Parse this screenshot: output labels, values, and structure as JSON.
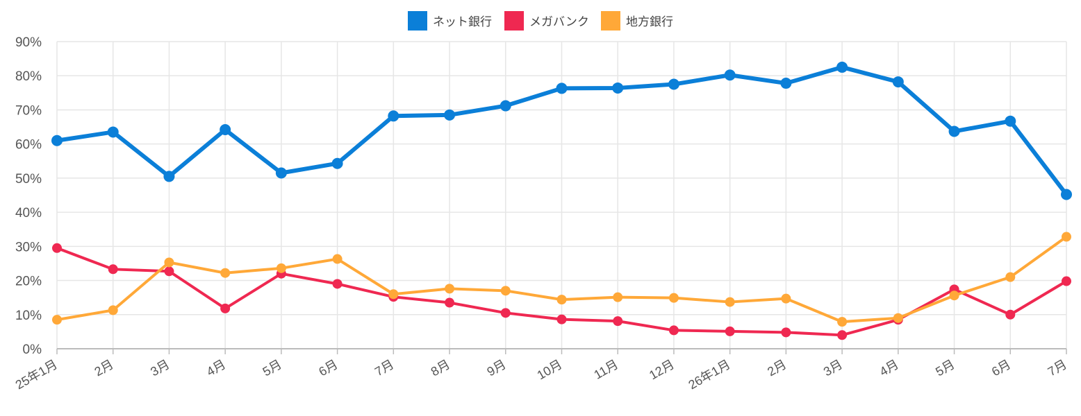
{
  "chart_data": {
    "type": "line",
    "categories": [
      "25年1月",
      "2月",
      "3月",
      "4月",
      "5月",
      "6月",
      "7月",
      "8月",
      "9月",
      "10月",
      "11月",
      "12月",
      "26年1月",
      "2月",
      "3月",
      "4月",
      "5月",
      "6月",
      "7月"
    ],
    "ylim": [
      0,
      90
    ],
    "yticks": [
      "0%",
      "10%",
      "20%",
      "30%",
      "40%",
      "50%",
      "60%",
      "70%",
      "80%",
      "90%"
    ],
    "grid": true,
    "legend_position": "top-center",
    "series": [
      {
        "name": "ネット銀行",
        "color": "#0b7fd8",
        "values": [
          61.0,
          63.5,
          50.5,
          64.2,
          51.5,
          54.3,
          68.2,
          68.5,
          71.2,
          76.3,
          76.4,
          77.5,
          80.2,
          77.8,
          82.5,
          78.2,
          63.7,
          66.7,
          45.2
        ]
      },
      {
        "name": "メガバンク",
        "color": "#ef2851",
        "values": [
          29.5,
          23.3,
          22.7,
          11.8,
          22.0,
          19.0,
          15.2,
          13.5,
          10.5,
          8.6,
          8.1,
          5.4,
          5.1,
          4.8,
          4.0,
          8.5,
          17.4,
          10.0,
          19.8
        ]
      },
      {
        "name": "地方銀行",
        "color": "#ffa838",
        "values": [
          8.5,
          11.3,
          25.3,
          22.2,
          23.6,
          26.3,
          16.0,
          17.6,
          17.0,
          14.4,
          15.1,
          14.9,
          13.7,
          14.7,
          7.9,
          9.0,
          15.6,
          21.0,
          32.8
        ]
      }
    ]
  }
}
